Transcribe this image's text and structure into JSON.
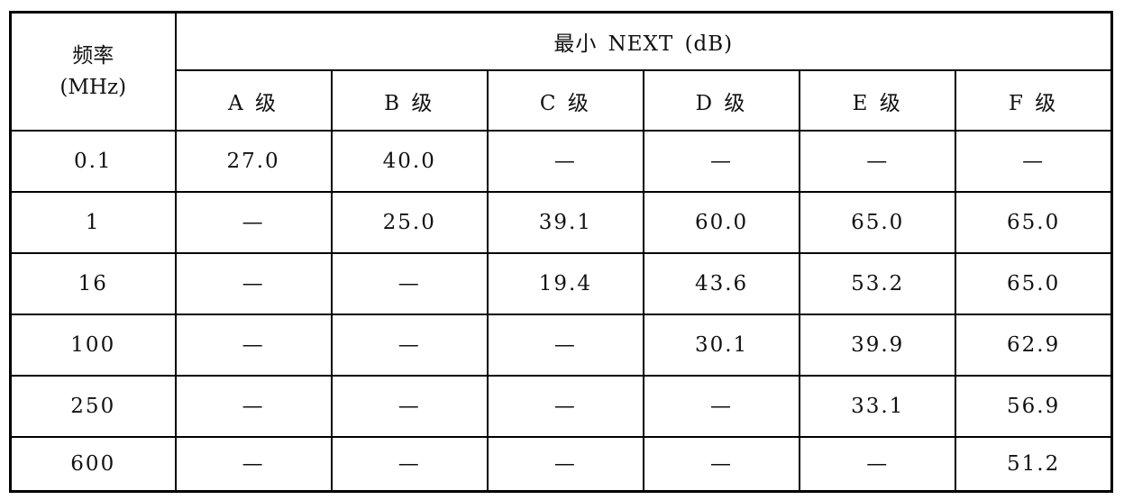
{
  "page": {
    "background": "#ffffff",
    "border_color": "#000000",
    "text_color": "#111111",
    "dash_color": "#555555",
    "empty_marker": "—"
  },
  "table": {
    "header": {
      "freq_label": "频率",
      "freq_unit": "(MHz)",
      "group_label": "最小 NEXT (dB)",
      "columns": [
        "A 级",
        "B 级",
        "C 级",
        "D 级",
        "E 级",
        "F 级"
      ]
    },
    "rows": [
      {
        "freq": "0.1",
        "values": [
          "27.0",
          "40.0",
          "—",
          "—",
          "—",
          "—"
        ]
      },
      {
        "freq": "1",
        "values": [
          "—",
          "25.0",
          "39.1",
          "60.0",
          "65.0",
          "65.0"
        ]
      },
      {
        "freq": "16",
        "values": [
          "—",
          "—",
          "19.4",
          "43.6",
          "53.2",
          "65.0"
        ]
      },
      {
        "freq": "100",
        "values": [
          "—",
          "—",
          "—",
          "30.1",
          "39.9",
          "62.9"
        ]
      },
      {
        "freq": "250",
        "values": [
          "—",
          "—",
          "—",
          "—",
          "33.1",
          "56.9"
        ]
      },
      {
        "freq": "600",
        "values": [
          "—",
          "—",
          "—",
          "—",
          "—",
          "51.2"
        ]
      }
    ]
  }
}
